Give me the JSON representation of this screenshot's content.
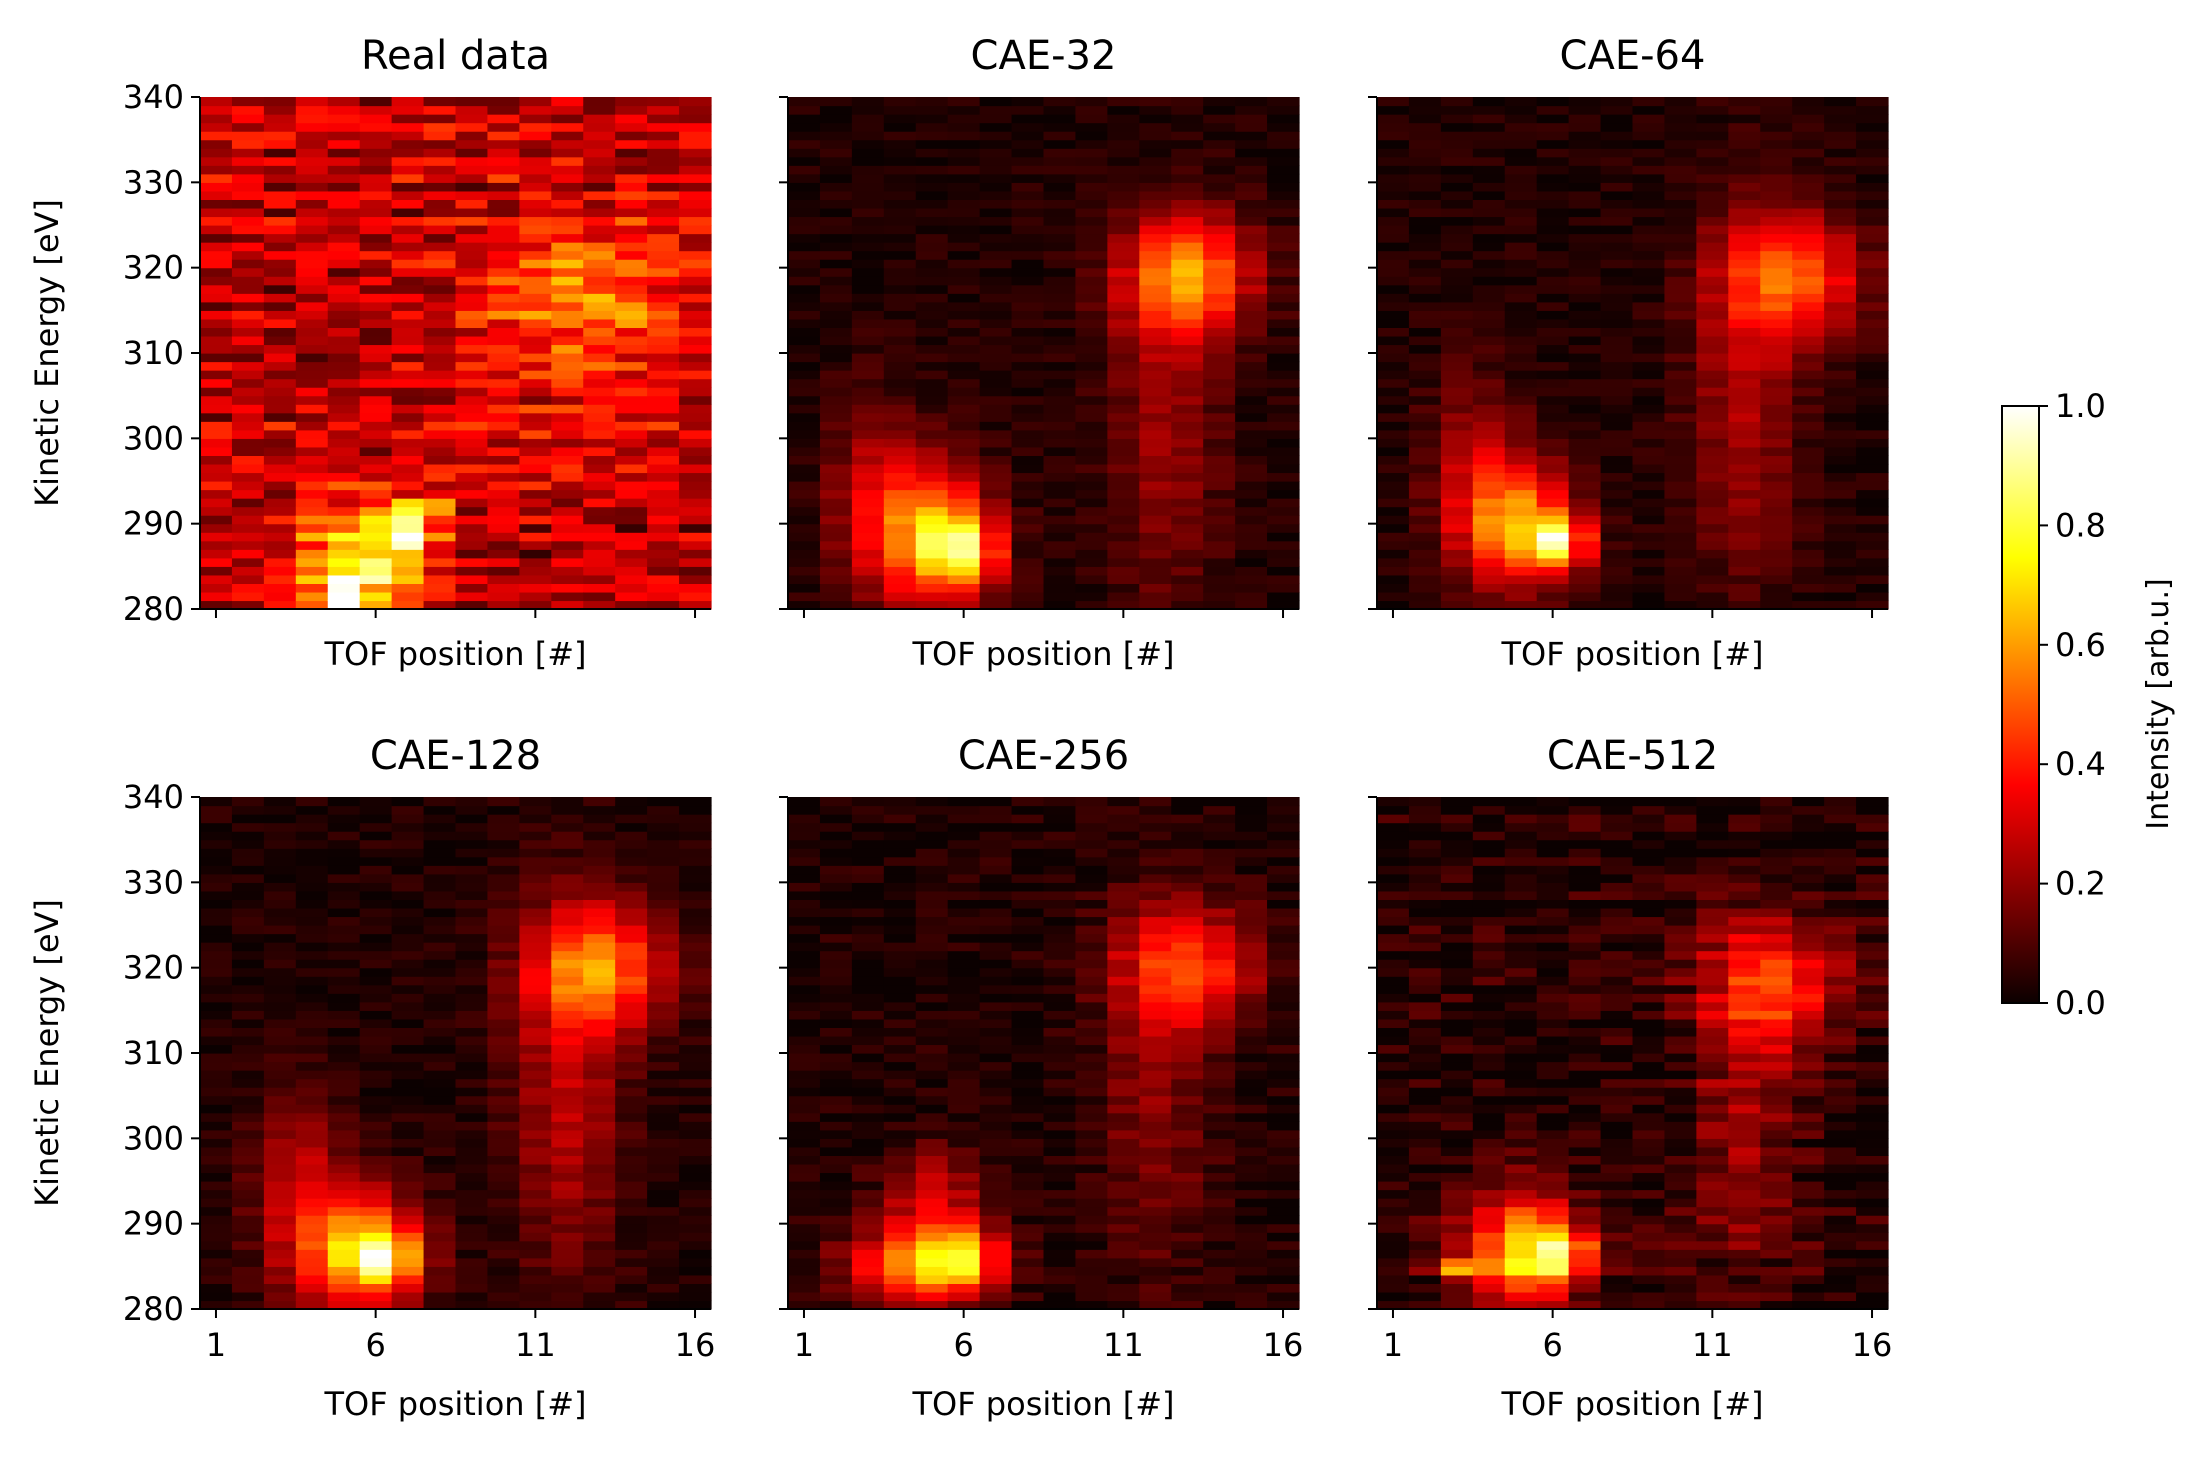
{
  "chart_data": {
    "type": "heatmap",
    "colormap": "hot",
    "x_label": "TOF position [#]",
    "y_label": "Kinetic Energy [eV]",
    "x_range": [
      0.5,
      16.5
    ],
    "y_range": [
      280,
      340
    ],
    "x_ticks": [
      "1",
      "6",
      "11",
      "16"
    ],
    "y_ticks": [
      "280",
      "290",
      "300",
      "310",
      "320",
      "330",
      "340"
    ],
    "colorbar": {
      "label": "Intensity [arb.u.]",
      "range": [
        0,
        1
      ],
      "ticks": [
        "0.0",
        "0.2",
        "0.4",
        "0.6",
        "0.8",
        "1.0"
      ]
    },
    "panels": [
      {
        "title": "Real data",
        "show_x_tick_labels": false,
        "show_y_tick_labels": true,
        "background": 0.26,
        "noise": 0.14,
        "row_stripes": true,
        "blobs": [
          {
            "x": 5.5,
            "y": 286,
            "sx": 1.3,
            "sy": 4,
            "a": 0.6
          },
          {
            "x": 5,
            "y": 281,
            "sx": 0.5,
            "sy": 1.5,
            "a": 0.75
          },
          {
            "x": 7,
            "y": 289,
            "sx": 0.5,
            "sy": 1.5,
            "a": 0.55
          },
          {
            "x": 7.5,
            "y": 292,
            "sx": 0.5,
            "sy": 0.8,
            "a": 0.5
          },
          {
            "x": 13,
            "y": 318,
            "sx": 2.2,
            "sy": 5,
            "a": 0.22
          },
          {
            "x": 12,
            "y": 312,
            "sx": 2.5,
            "sy": 9,
            "a": 0.12
          }
        ]
      },
      {
        "title": "CAE-32",
        "show_x_tick_labels": false,
        "show_y_tick_labels": false,
        "background": 0.03,
        "noise": 0.04,
        "row_stripes": false,
        "blobs": [
          {
            "x": 4.8,
            "y": 289,
            "sx": 1.3,
            "sy": 6,
            "a": 0.55
          },
          {
            "x": 6,
            "y": 287,
            "sx": 0.8,
            "sy": 3,
            "a": 0.55
          },
          {
            "x": 13,
            "y": 319,
            "sx": 1.4,
            "sy": 5,
            "a": 0.55
          },
          {
            "x": 12.3,
            "y": 300,
            "sx": 1.2,
            "sy": 14,
            "a": 0.18
          },
          {
            "x": 3,
            "y": 295,
            "sx": 1,
            "sy": 8,
            "a": 0.15
          }
        ]
      },
      {
        "title": "CAE-64",
        "show_x_tick_labels": false,
        "show_y_tick_labels": false,
        "background": 0.03,
        "noise": 0.04,
        "row_stripes": false,
        "blobs": [
          {
            "x": 5,
            "y": 290,
            "sx": 1.2,
            "sy": 5,
            "a": 0.55
          },
          {
            "x": 6.2,
            "y": 288,
            "sx": 0.6,
            "sy": 2,
            "a": 0.6
          },
          {
            "x": 13.5,
            "y": 319,
            "sx": 1.5,
            "sy": 5,
            "a": 0.45
          },
          {
            "x": 12,
            "y": 305,
            "sx": 1.2,
            "sy": 15,
            "a": 0.2
          },
          {
            "x": 3.5,
            "y": 296,
            "sx": 1,
            "sy": 8,
            "a": 0.2
          }
        ]
      },
      {
        "title": "CAE-128",
        "show_x_tick_labels": true,
        "show_y_tick_labels": true,
        "background": 0.03,
        "noise": 0.04,
        "row_stripes": false,
        "blobs": [
          {
            "x": 5.5,
            "y": 287,
            "sx": 1.3,
            "sy": 5,
            "a": 0.6
          },
          {
            "x": 6.3,
            "y": 286,
            "sx": 0.7,
            "sy": 2,
            "a": 0.5
          },
          {
            "x": 13,
            "y": 320,
            "sx": 1.5,
            "sy": 5,
            "a": 0.5
          },
          {
            "x": 12,
            "y": 305,
            "sx": 1.2,
            "sy": 15,
            "a": 0.22
          },
          {
            "x": 3.5,
            "y": 295,
            "sx": 1,
            "sy": 8,
            "a": 0.22
          }
        ]
      },
      {
        "title": "CAE-256",
        "show_x_tick_labels": true,
        "show_y_tick_labels": false,
        "background": 0.03,
        "noise": 0.05,
        "row_stripes": false,
        "blobs": [
          {
            "x": 4.5,
            "y": 285,
            "sx": 1.5,
            "sy": 3,
            "a": 0.55
          },
          {
            "x": 6,
            "y": 286,
            "sx": 0.8,
            "sy": 2.5,
            "a": 0.45
          },
          {
            "x": 5,
            "y": 293,
            "sx": 1,
            "sy": 4,
            "a": 0.3
          },
          {
            "x": 13,
            "y": 320,
            "sx": 1.5,
            "sy": 5,
            "a": 0.4
          },
          {
            "x": 12,
            "y": 305,
            "sx": 1.2,
            "sy": 15,
            "a": 0.15
          }
        ]
      },
      {
        "title": "CAE-512",
        "show_x_tick_labels": true,
        "show_y_tick_labels": false,
        "background": 0.03,
        "noise": 0.07,
        "row_stripes": true,
        "blobs": [
          {
            "x": 5,
            "y": 287,
            "sx": 1.2,
            "sy": 5,
            "a": 0.55
          },
          {
            "x": 6.2,
            "y": 286,
            "sx": 0.8,
            "sy": 2,
            "a": 0.55
          },
          {
            "x": 3,
            "y": 285,
            "sx": 0.6,
            "sy": 0.8,
            "a": 0.5
          },
          {
            "x": 13,
            "y": 318,
            "sx": 1.5,
            "sy": 5,
            "a": 0.35
          },
          {
            "x": 12,
            "y": 305,
            "sx": 1.2,
            "sy": 15,
            "a": 0.18
          }
        ]
      }
    ]
  }
}
